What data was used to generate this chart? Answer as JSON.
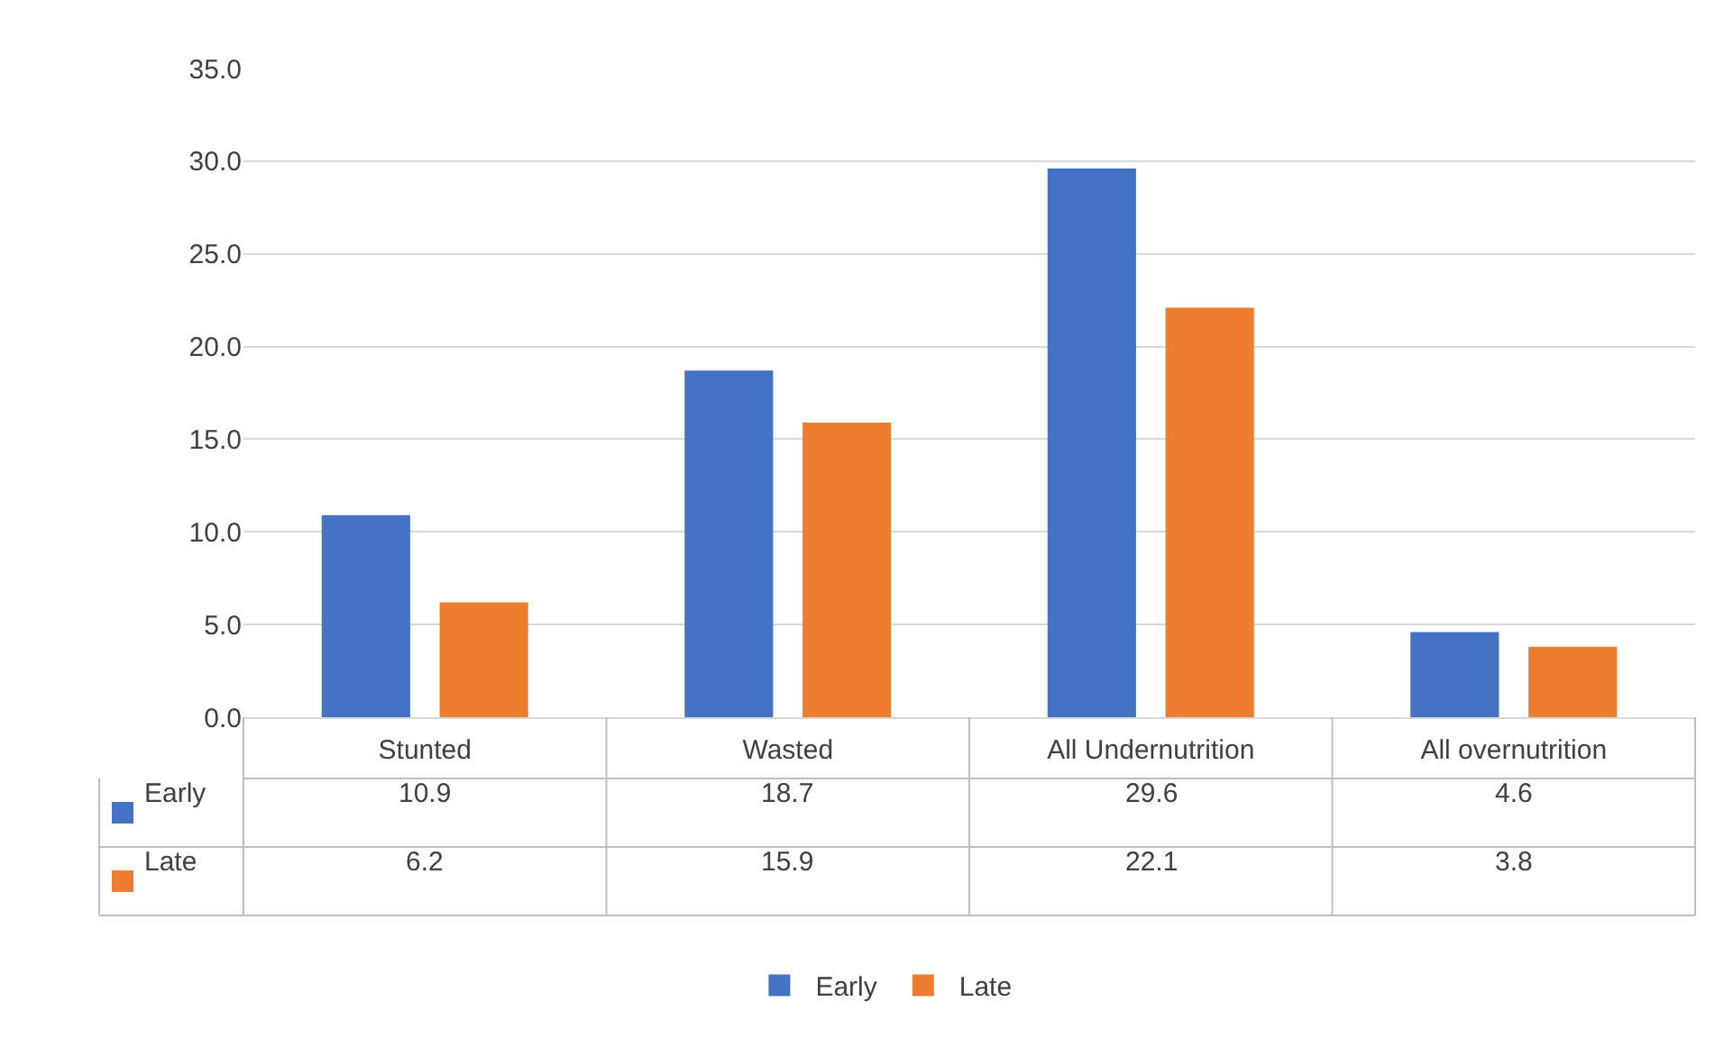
{
  "chart_data": {
    "type": "bar",
    "categories": [
      "Stunted",
      "Wasted",
      "All Undernutrition",
      "All overnutrition"
    ],
    "series": [
      {
        "name": "Early",
        "color": "#4472c4",
        "values": [
          10.9,
          18.7,
          29.6,
          4.6
        ]
      },
      {
        "name": "Late",
        "color": "#ed7d31",
        "values": [
          6.2,
          15.9,
          22.1,
          3.8
        ]
      }
    ],
    "ylim": [
      0,
      35
    ],
    "yticks": [
      {
        "value": 0,
        "label": "0.0"
      },
      {
        "value": 5,
        "label": "5.0"
      },
      {
        "value": 10,
        "label": "10.0"
      },
      {
        "value": 15,
        "label": "15.0"
      },
      {
        "value": 20,
        "label": "20.0"
      },
      {
        "value": 25,
        "label": "25.0"
      },
      {
        "value": 30,
        "label": "30.0"
      },
      {
        "value": 35,
        "label": "35.0"
      }
    ],
    "grid": "y",
    "legend": "bottom",
    "data_labels": true
  }
}
